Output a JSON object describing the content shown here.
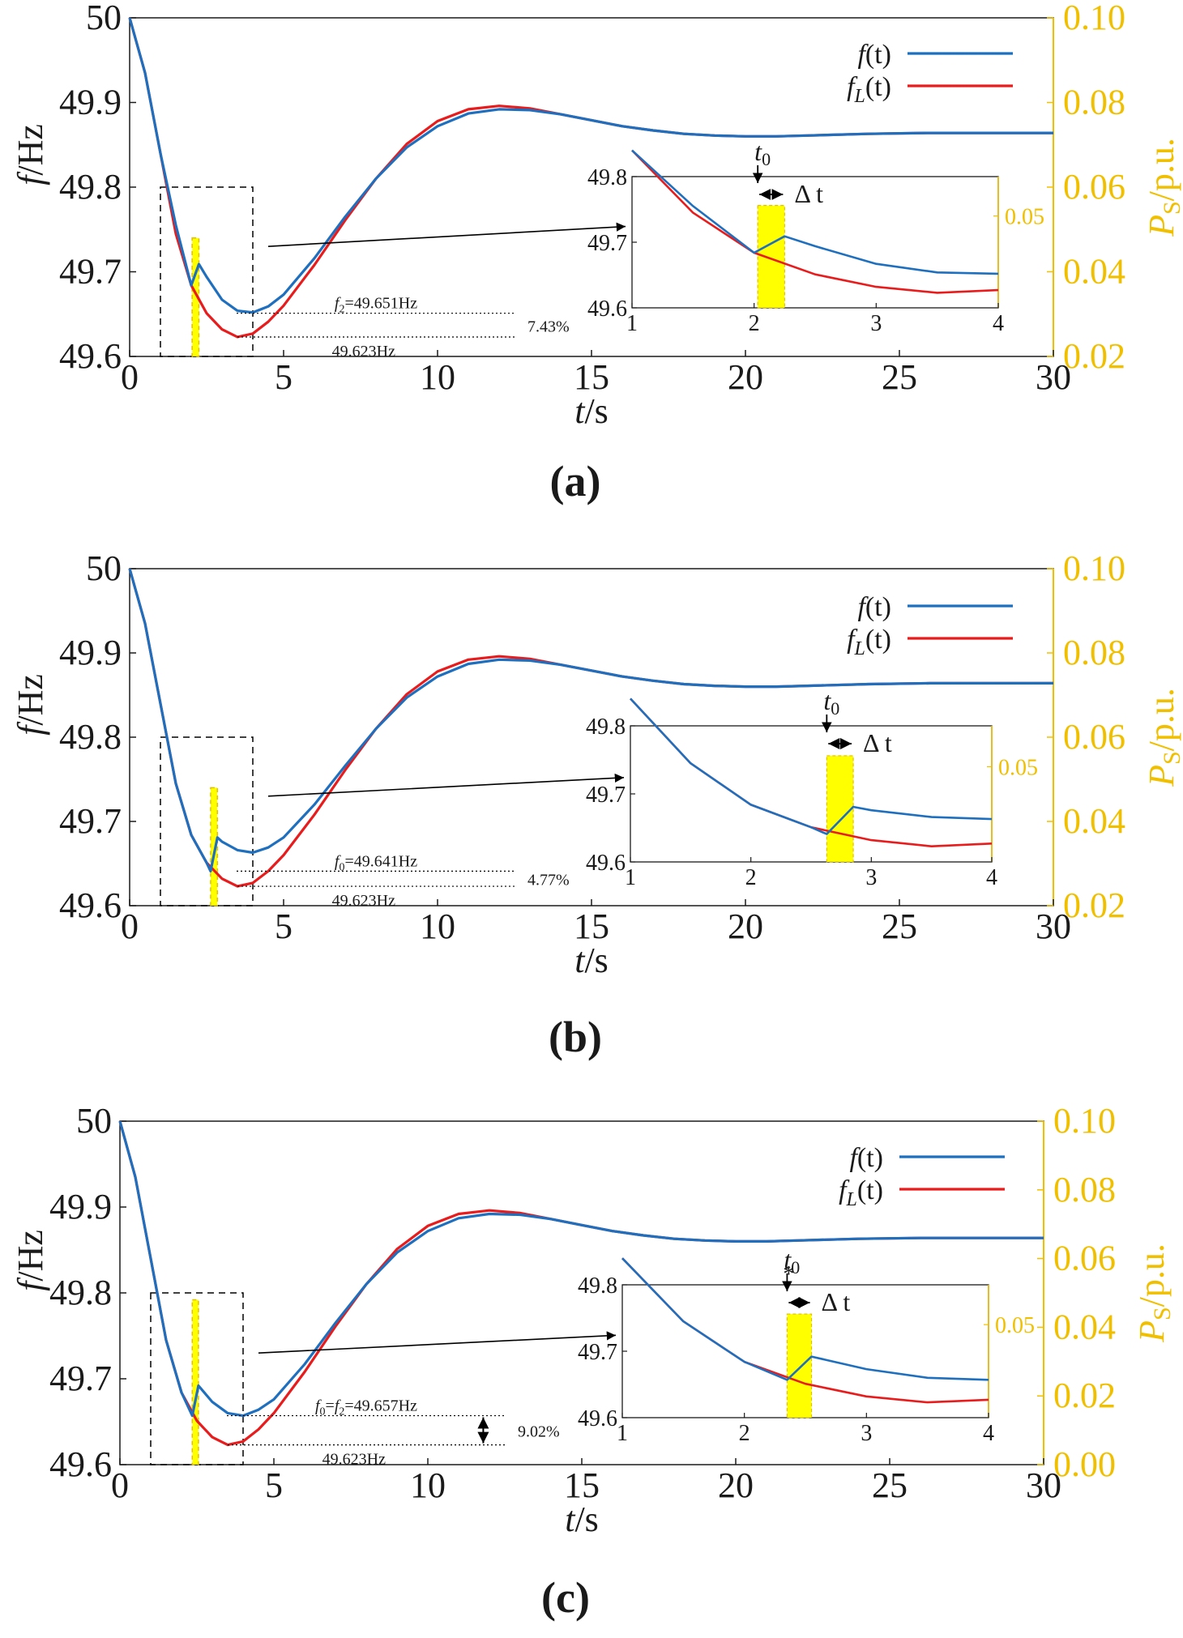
{
  "colors": {
    "f_line": "#1f6fbf",
    "fL_line": "#e81c1c",
    "power": "#ffff00",
    "power_edge": "#e0c000",
    "right_axis": "#f0c000",
    "axis": "#1a1a1a"
  },
  "axes": {
    "xlabel_var": "t",
    "xlabel_unit": "/s",
    "ylabel_var": "f",
    "ylabel_unit": "/Hz",
    "y2label_var": "P",
    "y2label_sub": "S",
    "y2label_unit": "/p.u.",
    "xlim": [
      0,
      30
    ],
    "ylim": [
      49.6,
      50
    ],
    "y2lim_ab": [
      0.02,
      0.1
    ],
    "y2lim_c": [
      0.0,
      0.1
    ]
  },
  "legend": {
    "f_var": "f",
    "f_args": "(t)",
    "fL_var": "f",
    "fL_sub": "L",
    "fL_args": "(t)"
  },
  "inset_labels": {
    "t0_var": "t",
    "t0_sub": "0",
    "delta": "Δ t",
    "star": "*"
  },
  "chart_data": [
    {
      "panel": "(a)",
      "type": "line",
      "x_ticks": [
        "0",
        "5",
        "10",
        "15",
        "20",
        "25",
        "30"
      ],
      "y_ticks": [
        "49.6",
        "49.7",
        "49.8",
        "49.9",
        "50"
      ],
      "y2_ticks": [
        "0.02",
        "0.04",
        "0.06",
        "0.08",
        "0.10"
      ],
      "series": [
        {
          "name": "f(t)",
          "x": [
            0,
            0.5,
            1,
            1.5,
            2,
            2.25,
            2.5,
            3,
            3.5,
            4,
            4.5,
            5,
            6,
            7,
            8,
            9,
            10,
            11,
            12,
            13,
            14,
            15,
            16,
            17,
            18,
            19,
            20,
            21,
            22,
            24,
            26,
            28,
            30
          ],
          "y": [
            50,
            49.935,
            49.84,
            49.755,
            49.684,
            49.709,
            49.694,
            49.667,
            49.654,
            49.652,
            49.659,
            49.673,
            49.716,
            49.765,
            49.81,
            49.847,
            49.872,
            49.887,
            49.892,
            49.891,
            49.886,
            49.879,
            49.872,
            49.867,
            49.863,
            49.861,
            49.86,
            49.86,
            49.861,
            49.863,
            49.864,
            49.864,
            49.864
          ]
        },
        {
          "name": "f_L(t)",
          "x": [
            0,
            0.5,
            1,
            1.5,
            2,
            2.5,
            3,
            3.5,
            4,
            4.5,
            5,
            6,
            7,
            8,
            9,
            10,
            11,
            12,
            13,
            14,
            15,
            16,
            17,
            18,
            19,
            20,
            21,
            22,
            24,
            26,
            28,
            30
          ],
          "y": [
            50,
            49.935,
            49.84,
            49.745,
            49.684,
            49.651,
            49.632,
            49.623,
            49.627,
            49.641,
            49.66,
            49.708,
            49.761,
            49.81,
            49.851,
            49.878,
            49.892,
            49.896,
            49.893,
            49.886,
            49.879,
            49.872,
            49.867,
            49.863,
            49.861,
            49.86,
            49.86,
            49.861,
            49.863,
            49.864,
            49.864,
            49.864
          ]
        }
      ],
      "power_bar": {
        "t_start": 2.03,
        "t_end": 2.25,
        "value": 0.048
      },
      "annotations": {
        "f_min_label": "f2=49.651Hz",
        "f_min_var": "f",
        "f_min_sub": "2",
        "f_min_eq": "=49.651Hz",
        "fL_min_label": "49.623Hz",
        "percent": "7.43%",
        "f_min_value": 49.651,
        "fL_min_value": 49.623
      },
      "zoom_box": {
        "x": [
          1,
          4
        ],
        "y": [
          49.6,
          49.8
        ]
      },
      "inset": {
        "x_ticks": [
          "1",
          "2",
          "3",
          "4"
        ],
        "y_ticks": [
          "49.6",
          "49.7",
          "49.8"
        ],
        "y2_tick": "0.05",
        "xlim": [
          1,
          4
        ],
        "ylim": [
          49.6,
          49.8
        ],
        "t0": 2.03
      }
    },
    {
      "panel": "(b)",
      "type": "line",
      "x_ticks": [
        "0",
        "5",
        "10",
        "15",
        "20",
        "25",
        "30"
      ],
      "y_ticks": [
        "49.6",
        "49.7",
        "49.8",
        "49.9",
        "50"
      ],
      "y2_ticks": [
        "0.02",
        "0.04",
        "0.06",
        "0.08",
        "0.10"
      ],
      "series": [
        {
          "name": "f(t)",
          "x": [
            0,
            0.5,
            1,
            1.5,
            2,
            2.5,
            2.63,
            2.85,
            3,
            3.5,
            4,
            4.5,
            5,
            6,
            7,
            8,
            9,
            10,
            11,
            12,
            13,
            14,
            15,
            16,
            17,
            18,
            19,
            20,
            21,
            22,
            24,
            26,
            28,
            30
          ],
          "y": [
            50,
            49.935,
            49.84,
            49.745,
            49.684,
            49.651,
            49.641,
            49.681,
            49.676,
            49.666,
            49.663,
            49.669,
            49.681,
            49.72,
            49.766,
            49.81,
            49.847,
            49.872,
            49.887,
            49.892,
            49.891,
            49.886,
            49.879,
            49.872,
            49.867,
            49.863,
            49.861,
            49.86,
            49.86,
            49.861,
            49.863,
            49.864,
            49.864,
            49.864
          ]
        },
        {
          "name": "f_L(t)",
          "x": [
            0,
            0.5,
            1,
            1.5,
            2,
            2.5,
            3,
            3.5,
            4,
            4.5,
            5,
            6,
            7,
            8,
            9,
            10,
            11,
            12,
            13,
            14,
            15,
            16,
            17,
            18,
            19,
            20,
            21,
            22,
            24,
            26,
            28,
            30
          ],
          "y": [
            50,
            49.935,
            49.84,
            49.745,
            49.684,
            49.651,
            49.632,
            49.623,
            49.627,
            49.641,
            49.66,
            49.708,
            49.761,
            49.81,
            49.851,
            49.878,
            49.892,
            49.896,
            49.893,
            49.886,
            49.879,
            49.872,
            49.867,
            49.863,
            49.861,
            49.86,
            49.86,
            49.861,
            49.863,
            49.864,
            49.864,
            49.864
          ]
        }
      ],
      "power_bar": {
        "t_start": 2.63,
        "t_end": 2.85,
        "value": 0.048
      },
      "annotations": {
        "f_min_label": "f0=49.641Hz",
        "f_min_var": "f",
        "f_min_sub": "0",
        "f_min_eq": "=49.641Hz",
        "fL_min_label": "49.623Hz",
        "percent": "4.77%",
        "f_min_value": 49.641,
        "fL_min_value": 49.623
      },
      "zoom_box": {
        "x": [
          1,
          4
        ],
        "y": [
          49.6,
          49.8
        ]
      },
      "inset": {
        "x_ticks": [
          "1",
          "2",
          "3",
          "4"
        ],
        "y_ticks": [
          "49.6",
          "49.7",
          "49.8"
        ],
        "y2_tick": "0.05",
        "xlim": [
          1,
          4
        ],
        "ylim": [
          49.6,
          49.8
        ],
        "t0": 2.63
      }
    },
    {
      "panel": "(c)",
      "type": "line",
      "x_ticks": [
        "0",
        "5",
        "10",
        "15",
        "20",
        "25",
        "30"
      ],
      "y_ticks": [
        "49.6",
        "49.7",
        "49.8",
        "49.9",
        "50"
      ],
      "y2_ticks": [
        "0.00",
        "0.02",
        "0.04",
        "0.06",
        "0.08",
        "0.10"
      ],
      "series": [
        {
          "name": "f(t)",
          "x": [
            0,
            0.5,
            1,
            1.5,
            2,
            2.35,
            2.55,
            3,
            3.5,
            4,
            4.5,
            5,
            6,
            7,
            8,
            9,
            10,
            11,
            12,
            13,
            14,
            15,
            16,
            17,
            18,
            19,
            20,
            21,
            22,
            24,
            26,
            28,
            30
          ],
          "y": [
            50,
            49.935,
            49.84,
            49.745,
            49.684,
            49.657,
            49.692,
            49.673,
            49.66,
            49.657,
            49.664,
            49.676,
            49.717,
            49.765,
            49.81,
            49.847,
            49.872,
            49.887,
            49.892,
            49.891,
            49.886,
            49.879,
            49.872,
            49.867,
            49.863,
            49.861,
            49.86,
            49.86,
            49.861,
            49.863,
            49.864,
            49.864,
            49.864
          ]
        },
        {
          "name": "f_L(t)",
          "x": [
            0,
            0.5,
            1,
            1.5,
            2,
            2.5,
            3,
            3.5,
            4,
            4.5,
            5,
            6,
            7,
            8,
            9,
            10,
            11,
            12,
            13,
            14,
            15,
            16,
            17,
            18,
            19,
            20,
            21,
            22,
            24,
            26,
            28,
            30
          ],
          "y": [
            50,
            49.935,
            49.84,
            49.745,
            49.684,
            49.651,
            49.632,
            49.623,
            49.627,
            49.641,
            49.66,
            49.708,
            49.761,
            49.81,
            49.851,
            49.878,
            49.892,
            49.896,
            49.893,
            49.886,
            49.879,
            49.872,
            49.867,
            49.863,
            49.861,
            49.86,
            49.86,
            49.861,
            49.863,
            49.864,
            49.864,
            49.864
          ]
        }
      ],
      "power_bar": {
        "t_start": 2.35,
        "t_end": 2.55,
        "value": 0.048
      },
      "annotations": {
        "f_min_label": "f0=f2=49.657Hz",
        "f_min_var": "f",
        "f_min_sub": "0",
        "f_min_mid": "=",
        "f_min_var2": "f",
        "f_min_sub2": "2",
        "f_min_eq": "=49.657Hz",
        "fL_min_label": "49.623Hz",
        "percent": "9.02%",
        "f_min_value": 49.657,
        "fL_min_value": 49.623
      },
      "zoom_box": {
        "x": [
          1,
          4
        ],
        "y": [
          49.6,
          49.8
        ]
      },
      "inset": {
        "x_ticks": [
          "1",
          "2",
          "3",
          "4"
        ],
        "y_ticks": [
          "49.6",
          "49.7",
          "49.8"
        ],
        "y2_tick": "0.05",
        "xlim": [
          1,
          4
        ],
        "ylim": [
          49.6,
          49.8
        ],
        "t0": 2.35
      }
    }
  ]
}
